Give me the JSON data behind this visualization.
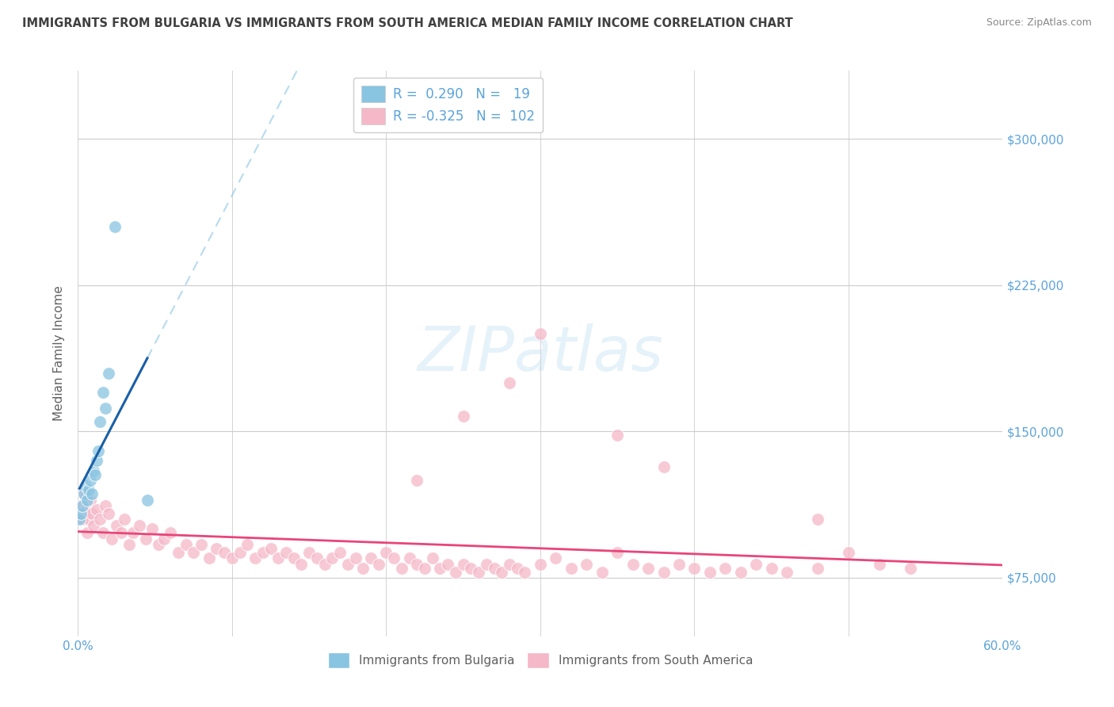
{
  "title": "IMMIGRANTS FROM BULGARIA VS IMMIGRANTS FROM SOUTH AMERICA MEDIAN FAMILY INCOME CORRELATION CHART",
  "source": "Source: ZipAtlas.com",
  "ylabel": "Median Family Income",
  "xlim": [
    0.0,
    0.6
  ],
  "ylim": [
    45000,
    335000
  ],
  "yticks": [
    75000,
    150000,
    225000,
    300000
  ],
  "ytick_labels": [
    "$75,000",
    "$150,000",
    "$225,000",
    "$300,000"
  ],
  "xtick_pos": [
    0.0,
    0.1,
    0.2,
    0.3,
    0.4,
    0.5,
    0.6
  ],
  "xtick_labels": [
    "0.0%",
    "",
    "",
    "",
    "",
    "",
    "60.0%"
  ],
  "color_blue": "#89c4e1",
  "color_pink": "#f5b8c8",
  "color_blue_line": "#1a5fa8",
  "color_pink_line": "#e8457a",
  "color_blue_dash": "#99cce8",
  "color_title": "#404040",
  "color_source": "#888888",
  "color_axis_label": "#5ba3d9",
  "color_grid": "#cccccc",
  "legend_label_1": "Immigrants from Bulgaria",
  "legend_label_2": "Immigrants from South America",
  "watermark_text": "ZIPatlas",
  "bulgaria_x": [
    0.001,
    0.002,
    0.003,
    0.004,
    0.005,
    0.006,
    0.007,
    0.008,
    0.009,
    0.01,
    0.011,
    0.012,
    0.013,
    0.014,
    0.016,
    0.018,
    0.02,
    0.024,
    0.045
  ],
  "bulgaria_y": [
    105000,
    108000,
    112000,
    118000,
    122000,
    115000,
    120000,
    125000,
    118000,
    130000,
    128000,
    135000,
    140000,
    155000,
    170000,
    162000,
    180000,
    255000,
    115000
  ],
  "south_america_x": [
    0.001,
    0.002,
    0.003,
    0.004,
    0.005,
    0.006,
    0.007,
    0.008,
    0.009,
    0.01,
    0.012,
    0.014,
    0.016,
    0.018,
    0.02,
    0.022,
    0.025,
    0.028,
    0.03,
    0.033,
    0.036,
    0.04,
    0.044,
    0.048,
    0.052,
    0.056,
    0.06,
    0.065,
    0.07,
    0.075,
    0.08,
    0.085,
    0.09,
    0.095,
    0.1,
    0.105,
    0.11,
    0.115,
    0.12,
    0.125,
    0.13,
    0.135,
    0.14,
    0.145,
    0.15,
    0.155,
    0.16,
    0.165,
    0.17,
    0.175,
    0.18,
    0.185,
    0.19,
    0.195,
    0.2,
    0.205,
    0.21,
    0.215,
    0.22,
    0.225,
    0.23,
    0.235,
    0.24,
    0.245,
    0.25,
    0.255,
    0.26,
    0.265,
    0.27,
    0.275,
    0.28,
    0.285,
    0.29,
    0.3,
    0.31,
    0.32,
    0.33,
    0.34,
    0.35,
    0.36,
    0.37,
    0.38,
    0.39,
    0.4,
    0.41,
    0.42,
    0.43,
    0.44,
    0.45,
    0.46,
    0.48,
    0.5,
    0.52,
    0.54,
    0.48,
    0.3,
    0.35,
    0.28,
    0.38,
    0.25,
    0.22
  ],
  "south_america_y": [
    108000,
    112000,
    105000,
    118000,
    110000,
    98000,
    105000,
    115000,
    108000,
    102000,
    110000,
    105000,
    98000,
    112000,
    108000,
    95000,
    102000,
    98000,
    105000,
    92000,
    98000,
    102000,
    95000,
    100000,
    92000,
    95000,
    98000,
    88000,
    92000,
    88000,
    92000,
    85000,
    90000,
    88000,
    85000,
    88000,
    92000,
    85000,
    88000,
    90000,
    85000,
    88000,
    85000,
    82000,
    88000,
    85000,
    82000,
    85000,
    88000,
    82000,
    85000,
    80000,
    85000,
    82000,
    88000,
    85000,
    80000,
    85000,
    82000,
    80000,
    85000,
    80000,
    82000,
    78000,
    82000,
    80000,
    78000,
    82000,
    80000,
    78000,
    82000,
    80000,
    78000,
    82000,
    85000,
    80000,
    82000,
    78000,
    88000,
    82000,
    80000,
    78000,
    82000,
    80000,
    78000,
    80000,
    78000,
    82000,
    80000,
    78000,
    80000,
    88000,
    82000,
    80000,
    105000,
    200000,
    148000,
    175000,
    132000,
    158000,
    125000
  ]
}
